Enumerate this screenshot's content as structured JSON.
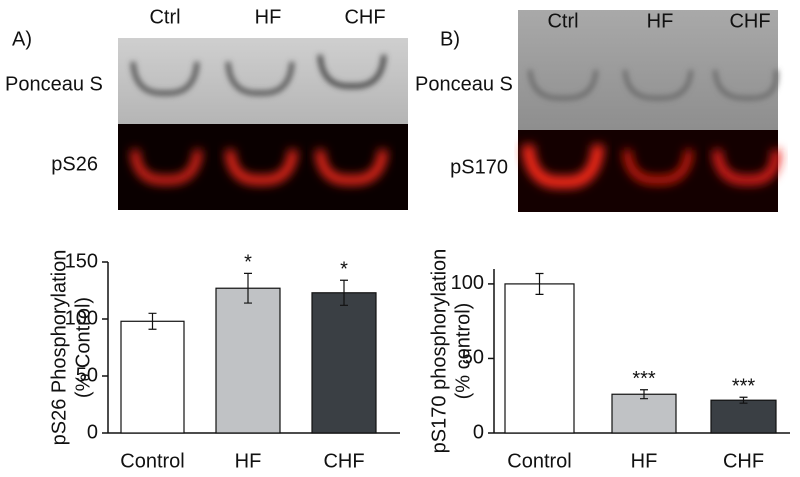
{
  "chart_data": [
    {
      "type": "bar",
      "panel_label": "A)",
      "blot": {
        "lanes": [
          "Ctrl",
          "HF",
          "CHF"
        ],
        "rows": [
          "Ponceau S",
          "pS26"
        ]
      },
      "ylabel": [
        "pS26 Phosphorylation",
        "(% Control)"
      ],
      "categories": [
        "Control",
        "HF",
        "CHF"
      ],
      "values": [
        98,
        127,
        123
      ],
      "errors": [
        7,
        13,
        11
      ],
      "value_annotations": [
        null,
        "*",
        "*"
      ],
      "colors": [
        "#ffffff",
        "#c0c2c5",
        "#3a3f44"
      ],
      "ylim": [
        0,
        150
      ],
      "yticks": [
        0,
        50,
        100,
        150
      ]
    },
    {
      "type": "bar",
      "panel_label": "B)",
      "blot": {
        "lanes": [
          "Ctrl",
          "HF",
          "CHF"
        ],
        "rows": [
          "Ponceau S",
          "pS170"
        ]
      },
      "ylabel": [
        "pS170 phosphorylation",
        "(% control)"
      ],
      "categories": [
        "Control",
        "HF",
        "CHF"
      ],
      "values": [
        100,
        26,
        22
      ],
      "errors": [
        7,
        3,
        2
      ],
      "value_annotations": [
        null,
        "***",
        "***"
      ],
      "colors": [
        "#ffffff",
        "#c0c2c5",
        "#3a3f44"
      ],
      "ylim": [
        0,
        110
      ],
      "yticks": [
        0,
        50,
        100
      ]
    }
  ]
}
